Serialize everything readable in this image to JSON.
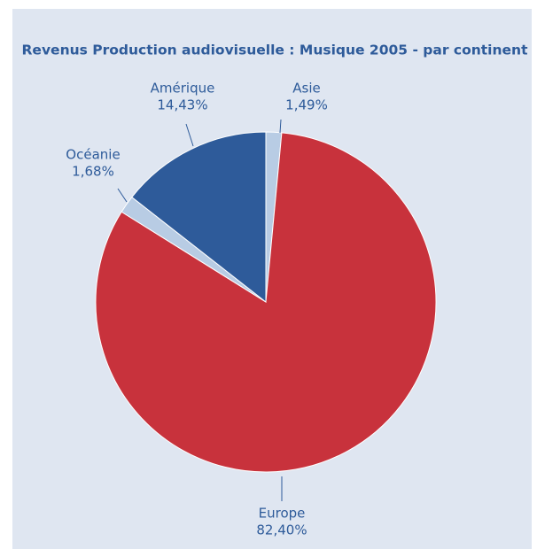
{
  "chart_data": {
    "type": "pie",
    "title": "Revenus Production audiovisuelle : Musique 2005 - par continent",
    "categories": [
      "Asie",
      "Europe",
      "Océanie",
      "Amérique"
    ],
    "values": [
      1.49,
      82.4,
      1.68,
      14.43
    ],
    "value_labels": [
      "1,49%",
      "82,40%",
      "1,68%",
      "14,43%"
    ],
    "colors": [
      "#b8cce4",
      "#c8323c",
      "#b8cce4",
      "#2e5b9a"
    ]
  }
}
